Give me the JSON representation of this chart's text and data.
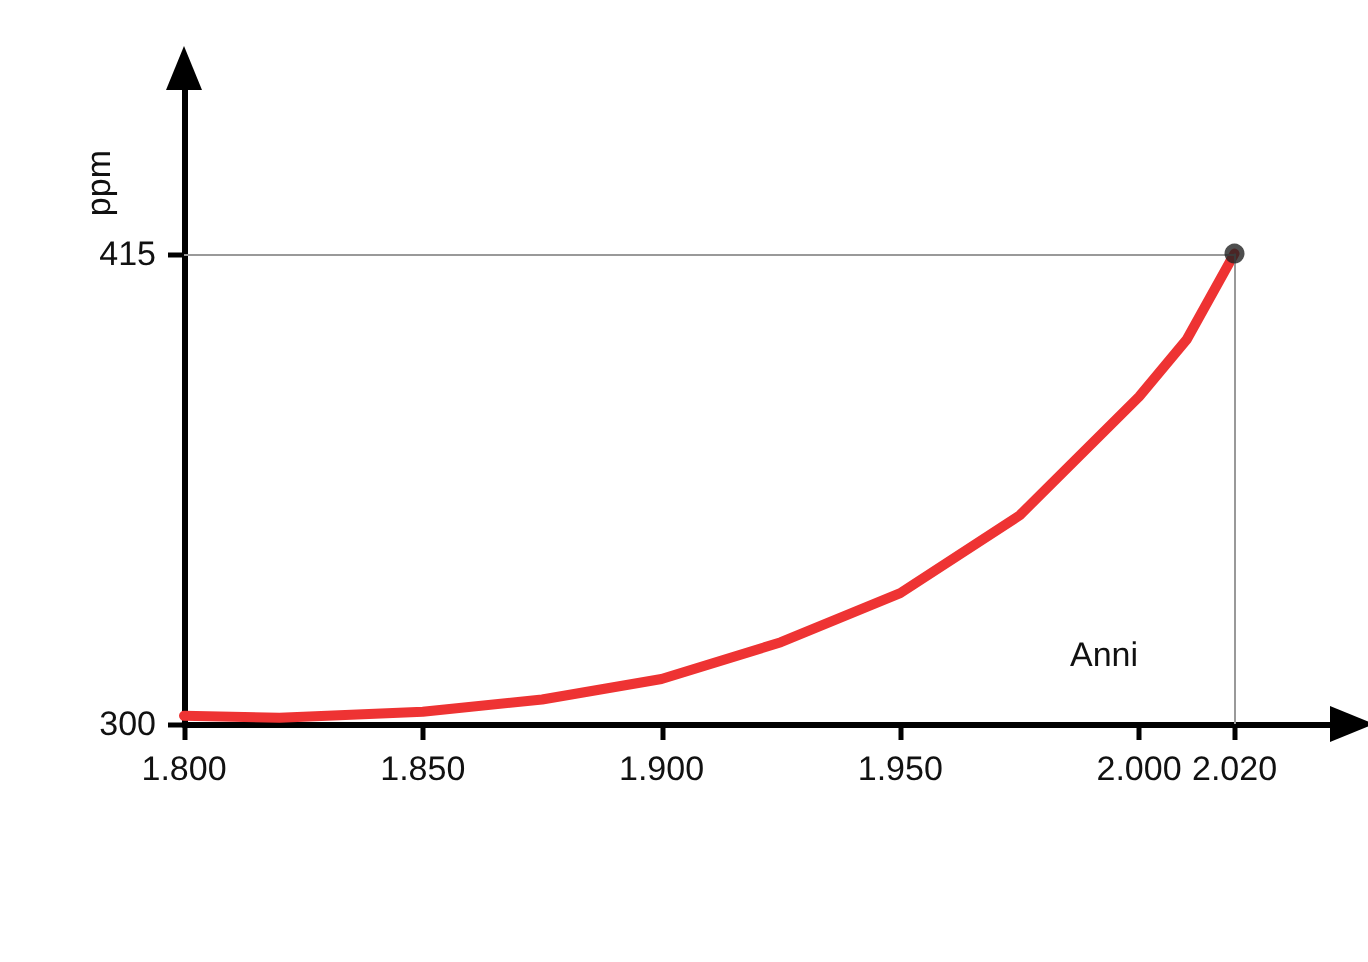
{
  "chart_data": {
    "type": "line",
    "xlabel": "Anni",
    "ylabel": "ppm",
    "xlim": [
      1800,
      2040
    ],
    "ylim": [
      300,
      455
    ],
    "xticks": [
      {
        "value": 1800,
        "label": "1.800"
      },
      {
        "value": 1850,
        "label": "1.850"
      },
      {
        "value": 1900,
        "label": "1.900"
      },
      {
        "value": 1950,
        "label": "1.950"
      },
      {
        "value": 2000,
        "label": "2.000"
      },
      {
        "value": 2020,
        "label": "2.020"
      }
    ],
    "yticks": [
      300,
      415
    ],
    "series": [
      {
        "color": "#ee3333",
        "x": [
          1800,
          1820,
          1850,
          1875,
          1900,
          1925,
          1950,
          1975,
          2000,
          2010,
          2020
        ],
        "values": [
          302,
          301.5,
          303,
          306,
          311,
          320,
          332,
          351,
          380,
          394,
          415
        ]
      },
      {
        "type": "scatter",
        "marker": "circle",
        "color": "#222222",
        "x": [
          2020
        ],
        "values": [
          415
        ]
      }
    ],
    "ref_lines": [
      {
        "axis": "x",
        "value": 2020,
        "color": "#999999"
      },
      {
        "axis": "y",
        "value": 415,
        "color": "#999999"
      }
    ],
    "grid": false,
    "marker": "none",
    "line_style": "solid"
  }
}
